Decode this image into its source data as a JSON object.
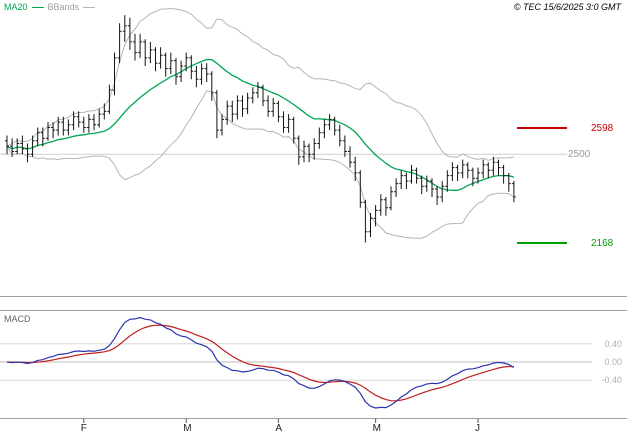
{
  "header": {
    "legend_ma20": "MA20",
    "legend_bbands": "BBands",
    "copyright": "© TEC 15/6/2025 3:0 GMT"
  },
  "price_panel": {
    "labels": [
      {
        "label": "2598",
        "value": 25.98,
        "color": "#cc0000"
      },
      {
        "label": "2500",
        "value": 25.0,
        "color": "#9a9a9a"
      },
      {
        "label": "2168",
        "value": 21.68,
        "color": "#009900"
      }
    ]
  },
  "macd_panel": {
    "title": "MACD",
    "labels": [
      {
        "label": "0.40",
        "value": 0.4
      },
      {
        "label": "0.00",
        "value": 0
      },
      {
        "label": "-0.40",
        "value": -0.4
      }
    ]
  },
  "x_axis": {
    "labels": [
      {
        "label": "F",
        "index": 15
      },
      {
        "label": "M",
        "index": 35
      },
      {
        "label": "A",
        "index": 53
      },
      {
        "label": "M",
        "index": 72
      },
      {
        "label": "J",
        "index": 92
      }
    ]
  },
  "chart_data": [
    {
      "type": "candlestick",
      "panel": "price",
      "title": "",
      "x_months": [
        "F",
        "M",
        "A",
        "M",
        "J"
      ],
      "ylim": [
        19.9,
        30.4
      ],
      "gridlines": [
        25.0
      ],
      "ref_lines": {
        "upper": {
          "value": 25.98,
          "color": "#cc0000"
        },
        "lower": {
          "value": 21.68,
          "color": "#00a000"
        }
      },
      "overlays": [
        {
          "name": "MA20",
          "type": "sma",
          "period": 20,
          "color": "#00a651"
        },
        {
          "name": "BBands",
          "type": "bollinger",
          "period": 20,
          "stdev_mult": 2,
          "color": "#b5b5b5"
        }
      ],
      "ohlc": [
        [
          25.5,
          25.7,
          25.0,
          25.3
        ],
        [
          25.3,
          25.6,
          24.9,
          25.1
        ],
        [
          25.1,
          25.6,
          25.0,
          25.4
        ],
        [
          25.4,
          25.7,
          25.0,
          25.2
        ],
        [
          25.2,
          25.4,
          24.7,
          25.0
        ],
        [
          25.0,
          25.7,
          24.9,
          25.5
        ],
        [
          25.5,
          26.0,
          25.3,
          25.8
        ],
        [
          25.8,
          26.0,
          25.3,
          25.6
        ],
        [
          25.6,
          26.2,
          25.5,
          26.0
        ],
        [
          26.0,
          26.2,
          25.6,
          25.9
        ],
        [
          25.9,
          26.4,
          25.7,
          26.2
        ],
        [
          26.2,
          26.4,
          25.7,
          25.9
        ],
        [
          25.9,
          26.3,
          25.7,
          26.1
        ],
        [
          26.1,
          26.6,
          25.9,
          26.4
        ],
        [
          26.4,
          26.6,
          26.0,
          26.2
        ],
        [
          26.2,
          26.4,
          25.8,
          26.0
        ],
        [
          26.0,
          26.5,
          25.8,
          26.3
        ],
        [
          26.3,
          26.5,
          25.9,
          26.1
        ],
        [
          26.1,
          26.7,
          26.0,
          26.5
        ],
        [
          26.5,
          26.9,
          26.3,
          26.6
        ],
        [
          26.6,
          27.6,
          26.5,
          27.4
        ],
        [
          27.4,
          28.8,
          27.2,
          28.6
        ],
        [
          28.6,
          29.9,
          28.4,
          29.6
        ],
        [
          29.6,
          30.2,
          29.2,
          29.8
        ],
        [
          29.8,
          30.1,
          28.9,
          29.2
        ],
        [
          29.2,
          29.5,
          28.5,
          28.8
        ],
        [
          28.8,
          29.5,
          28.6,
          29.2
        ],
        [
          29.2,
          29.3,
          28.3,
          28.6
        ],
        [
          28.6,
          29.2,
          28.4,
          28.9
        ],
        [
          28.9,
          29.0,
          28.1,
          28.4
        ],
        [
          28.4,
          29.0,
          28.2,
          28.7
        ],
        [
          28.7,
          28.8,
          27.9,
          28.2
        ],
        [
          28.2,
          28.8,
          28.0,
          28.5
        ],
        [
          28.5,
          28.6,
          27.6,
          27.9
        ],
        [
          27.9,
          28.5,
          27.7,
          28.3
        ],
        [
          28.3,
          28.8,
          28.1,
          28.6
        ],
        [
          28.6,
          28.7,
          27.8,
          28.1
        ],
        [
          28.1,
          28.3,
          27.5,
          27.8
        ],
        [
          27.8,
          28.4,
          27.6,
          28.2
        ],
        [
          28.2,
          28.4,
          27.7,
          28.0
        ],
        [
          28.0,
          28.1,
          27.0,
          27.3
        ],
        [
          27.3,
          27.4,
          25.6,
          25.9
        ],
        [
          25.9,
          26.5,
          25.7,
          26.3
        ],
        [
          26.3,
          27.0,
          26.1,
          26.8
        ],
        [
          26.8,
          27.0,
          26.2,
          26.5
        ],
        [
          26.5,
          27.2,
          26.3,
          27.0
        ],
        [
          27.0,
          27.2,
          26.4,
          26.7
        ],
        [
          26.7,
          27.3,
          26.5,
          27.1
        ],
        [
          27.1,
          27.5,
          26.9,
          27.3
        ],
        [
          27.3,
          27.7,
          27.1,
          27.5
        ],
        [
          27.5,
          27.6,
          26.8,
          27.0
        ],
        [
          27.0,
          27.2,
          26.4,
          26.6
        ],
        [
          26.6,
          27.1,
          26.4,
          26.9
        ],
        [
          26.9,
          27.0,
          26.2,
          26.4
        ],
        [
          26.4,
          26.6,
          25.8,
          26.0
        ],
        [
          26.0,
          26.5,
          25.8,
          26.3
        ],
        [
          26.3,
          26.4,
          25.4,
          25.6
        ],
        [
          25.6,
          25.7,
          24.6,
          24.9
        ],
        [
          24.9,
          25.5,
          24.7,
          25.3
        ],
        [
          25.3,
          25.4,
          24.7,
          25.0
        ],
        [
          25.0,
          25.6,
          24.8,
          25.4
        ],
        [
          25.4,
          26.0,
          25.2,
          25.8
        ],
        [
          25.8,
          26.3,
          25.6,
          26.1
        ],
        [
          26.1,
          26.5,
          25.9,
          26.3
        ],
        [
          26.3,
          26.4,
          25.7,
          25.9
        ],
        [
          25.9,
          26.1,
          25.3,
          25.5
        ],
        [
          25.5,
          25.7,
          24.9,
          25.1
        ],
        [
          25.1,
          25.3,
          24.5,
          24.7
        ],
        [
          24.7,
          24.9,
          24.0,
          24.3
        ],
        [
          24.3,
          24.4,
          23.0,
          23.2
        ],
        [
          23.2,
          23.3,
          21.7,
          22.1
        ],
        [
          22.1,
          22.8,
          21.9,
          22.6
        ],
        [
          22.6,
          23.1,
          22.3,
          22.9
        ],
        [
          22.9,
          23.5,
          22.7,
          23.3
        ],
        [
          23.3,
          23.4,
          22.7,
          23.0
        ],
        [
          23.0,
          23.8,
          22.9,
          23.6
        ],
        [
          23.6,
          24.1,
          23.4,
          23.9
        ],
        [
          23.9,
          24.4,
          23.7,
          24.2
        ],
        [
          24.2,
          24.3,
          23.7,
          24.0
        ],
        [
          24.0,
          24.6,
          23.9,
          24.4
        ],
        [
          24.4,
          24.5,
          23.9,
          24.1
        ],
        [
          24.1,
          24.2,
          23.5,
          23.8
        ],
        [
          23.8,
          24.2,
          23.6,
          24.0
        ],
        [
          24.0,
          24.1,
          23.4,
          23.7
        ],
        [
          23.7,
          23.8,
          23.1,
          23.4
        ],
        [
          23.4,
          24.0,
          23.2,
          23.8
        ],
        [
          23.8,
          24.4,
          23.6,
          24.2
        ],
        [
          24.2,
          24.7,
          24.0,
          24.5
        ],
        [
          24.5,
          24.6,
          24.0,
          24.3
        ],
        [
          24.3,
          24.8,
          24.1,
          24.6
        ],
        [
          24.6,
          24.7,
          24.1,
          24.4
        ],
        [
          24.4,
          24.5,
          23.8,
          24.1
        ],
        [
          24.1,
          24.5,
          23.9,
          24.3
        ],
        [
          24.3,
          24.8,
          24.1,
          24.6
        ],
        [
          24.6,
          24.7,
          24.1,
          24.4
        ],
        [
          24.4,
          24.9,
          24.2,
          24.7
        ],
        [
          24.7,
          24.8,
          24.2,
          24.5
        ],
        [
          24.5,
          24.6,
          23.9,
          24.2
        ],
        [
          24.2,
          24.3,
          23.6,
          23.9
        ],
        [
          23.9,
          24.0,
          23.2,
          23.4
        ]
      ]
    },
    {
      "type": "line",
      "panel": "indicator",
      "name": "MACD",
      "derived_from": "price close",
      "params": {
        "fast": 12,
        "slow": 26,
        "signal": 9
      },
      "gridlines": [
        0.4,
        0.0,
        -0.4
      ],
      "colors": {
        "macd_line": "#2b35af",
        "signal_line": "#c02020"
      }
    }
  ]
}
